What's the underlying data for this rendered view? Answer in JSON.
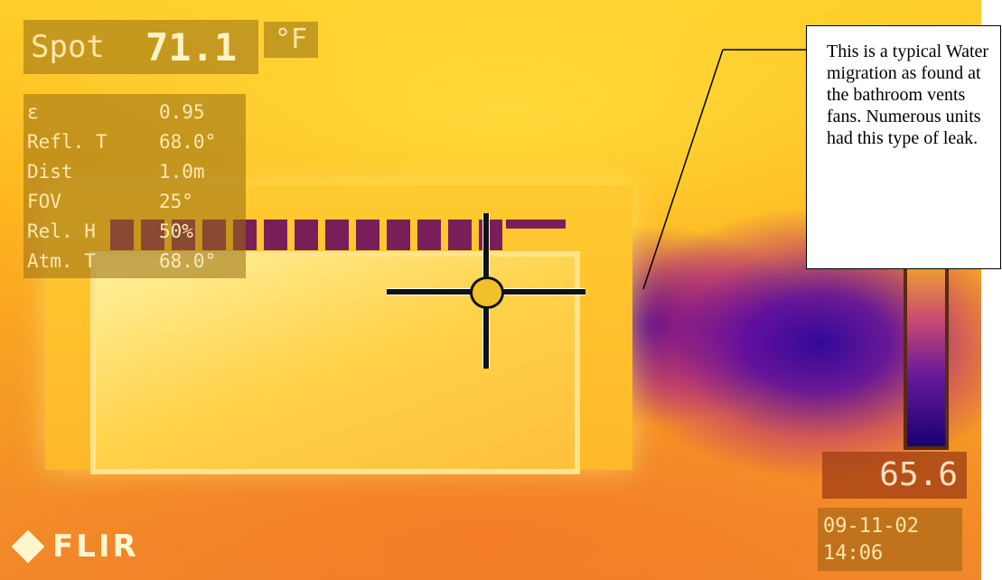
{
  "camera_overlay": {
    "spot_label": "Spot",
    "spot_value": "71.1",
    "unit": "°F",
    "parameters": [
      {
        "label": "ε",
        "value": "0.95"
      },
      {
        "label": "Refl. T",
        "value": "68.0°"
      },
      {
        "label": "Dist",
        "value": "1.0m"
      },
      {
        "label": "FOV",
        "value": "25°"
      },
      {
        "label": "Rel. H",
        "value": "50%"
      },
      {
        "label": "Atm. T",
        "value": "68.0°"
      }
    ],
    "scale_value": "65.6",
    "date": "09-11-02",
    "time": "14:06",
    "logo": "FLIR"
  },
  "callout": {
    "text": "This is a typical Water migration as found at the bathroom vents fans. Numerous units had this type of leak."
  },
  "colors": {
    "warm": "#ffb61f",
    "cold": "#2a0090",
    "slat": "#7a1e5a"
  }
}
